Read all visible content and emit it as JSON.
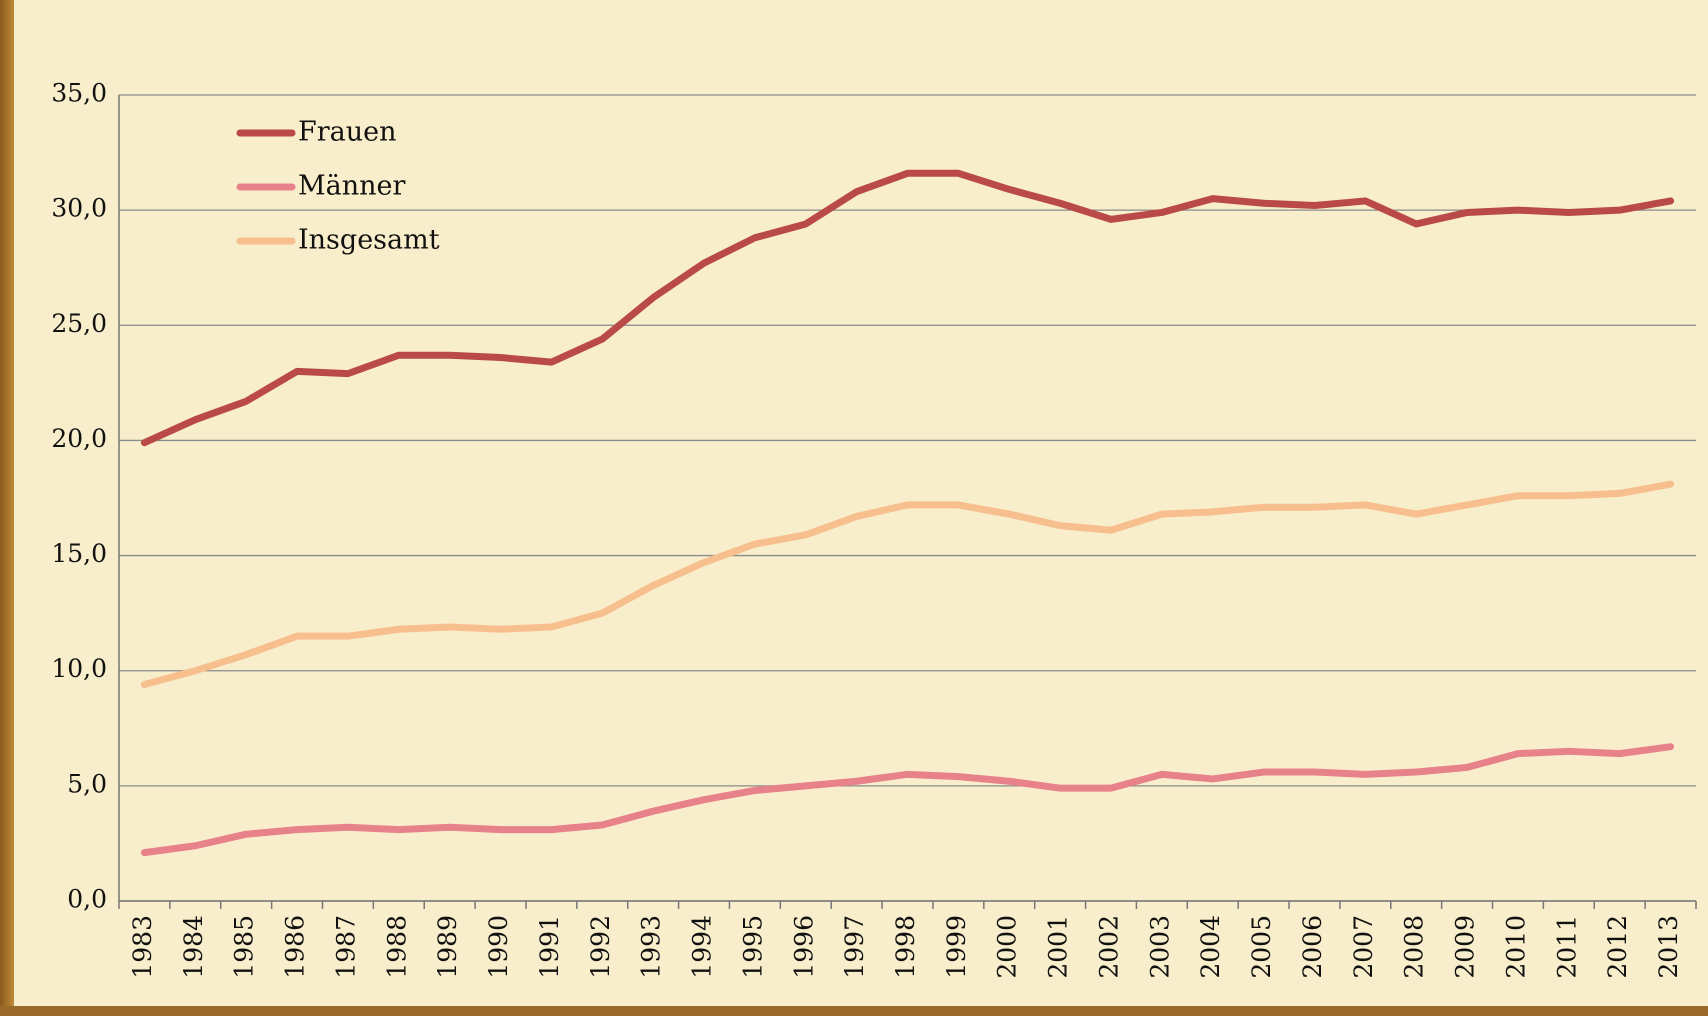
{
  "chart_data": {
    "type": "line",
    "categories": [
      "1983",
      "1984",
      "1985",
      "1986",
      "1987",
      "1988",
      "1989",
      "1990",
      "1991",
      "1992",
      "1993",
      "1994",
      "1995",
      "1996",
      "1997",
      "1998",
      "1999",
      "2000",
      "2001",
      "2002",
      "2003",
      "2004",
      "2005",
      "2006",
      "2007",
      "2008",
      "2009",
      "2010",
      "2011",
      "2012",
      "2013"
    ],
    "series": [
      {
        "name": "Frauen",
        "color": "#b94a48",
        "values": [
          19.9,
          20.9,
          21.7,
          23.0,
          22.9,
          23.7,
          23.7,
          23.6,
          23.4,
          24.4,
          26.2,
          27.7,
          28.8,
          29.4,
          30.8,
          31.6,
          31.6,
          30.9,
          30.3,
          29.6,
          29.9,
          30.5,
          30.3,
          30.2,
          30.4,
          29.4,
          29.9,
          30.0,
          29.9,
          30.0,
          30.4
        ]
      },
      {
        "name": "Männer",
        "color": "#e8828a",
        "values": [
          2.1,
          2.4,
          2.9,
          3.1,
          3.2,
          3.1,
          3.2,
          3.1,
          3.1,
          3.3,
          3.9,
          4.4,
          4.8,
          5.0,
          5.2,
          5.5,
          5.4,
          5.2,
          4.9,
          4.9,
          5.5,
          5.3,
          5.6,
          5.6,
          5.5,
          5.6,
          5.8,
          6.4,
          6.5,
          6.4,
          6.7
        ]
      },
      {
        "name": "Insgesamt",
        "color": "#f8bf8e",
        "values": [
          9.4,
          10.0,
          10.7,
          11.5,
          11.5,
          11.8,
          11.9,
          11.8,
          11.9,
          12.5,
          13.7,
          14.7,
          15.5,
          15.9,
          16.7,
          17.2,
          17.2,
          16.8,
          16.3,
          16.1,
          16.8,
          16.9,
          17.1,
          17.1,
          17.2,
          16.8,
          17.2,
          17.6,
          17.6,
          17.7,
          18.1
        ]
      }
    ],
    "ylim": [
      0,
      35
    ],
    "yticks": [
      {
        "value": 0,
        "label": "0,0"
      },
      {
        "value": 5,
        "label": "5,0"
      },
      {
        "value": 10,
        "label": "10,0"
      },
      {
        "value": 15,
        "label": "15,0"
      },
      {
        "value": 20,
        "label": "20,0"
      },
      {
        "value": 25,
        "label": "25,0"
      },
      {
        "value": 30,
        "label": "30,0"
      },
      {
        "value": 35,
        "label": "35,0"
      }
    ],
    "grid": true,
    "legend": "upper left"
  }
}
